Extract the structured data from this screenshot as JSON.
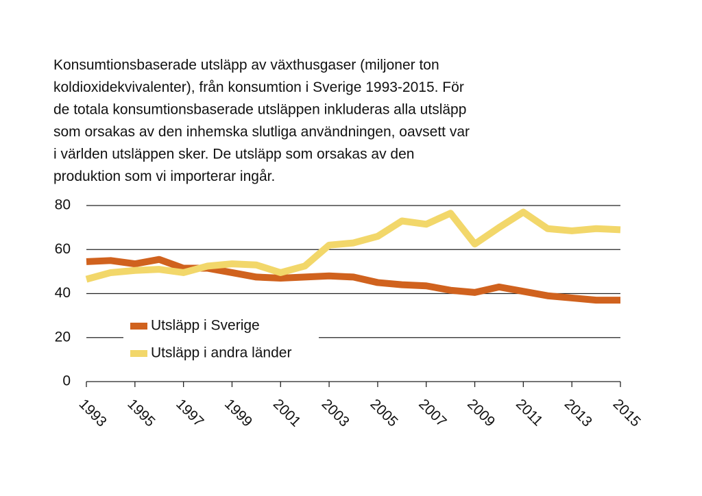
{
  "chart_data": {
    "type": "line",
    "title": [
      "Konsumtionsbaserade utsläpp av växthusgaser (miljoner ton",
      "koldioxidekvivalenter), från konsumtion i Sverige 1993-2015. För",
      "de totala konsumtionsbaserade utsläppen inkluderas alla utsläpp",
      "som orsakas av den inhemska slutliga användningen, oavsett var",
      "i världen utsläppen sker. De utsläpp som orsakas av den",
      "produktion som vi importerar ingår."
    ],
    "x": [
      1993,
      1994,
      1995,
      1996,
      1997,
      1998,
      1999,
      2000,
      2001,
      2002,
      2003,
      2004,
      2005,
      2006,
      2007,
      2008,
      2009,
      2010,
      2011,
      2012,
      2013,
      2014,
      2015
    ],
    "series": [
      {
        "name": "Utsläpp i Sverige",
        "color": "#d0621e",
        "values": [
          54.5,
          55,
          53.5,
          55.5,
          51.5,
          51.5,
          49.5,
          47.5,
          47,
          47.5,
          48,
          47.5,
          45,
          44,
          43.5,
          41.5,
          40.5,
          43,
          41,
          39,
          38,
          37,
          37
        ]
      },
      {
        "name": "Utsläpp i andra länder",
        "color": "#f2d76a",
        "values": [
          46.5,
          49.5,
          50.5,
          51,
          49.5,
          52.5,
          53.5,
          53,
          49.5,
          52.5,
          62,
          63,
          66,
          73,
          71.5,
          76.5,
          62.5,
          70,
          77,
          69.5,
          68.5,
          69.5,
          69
        ]
      }
    ],
    "xlim": [
      1993,
      2015
    ],
    "xticks": [
      1993,
      1995,
      1997,
      1999,
      2001,
      2003,
      2005,
      2007,
      2009,
      2011,
      2013,
      2015
    ],
    "ylim": [
      0,
      80
    ],
    "yticks": [
      0,
      20,
      40,
      60,
      80
    ],
    "grid": true,
    "legend": "center-left"
  }
}
